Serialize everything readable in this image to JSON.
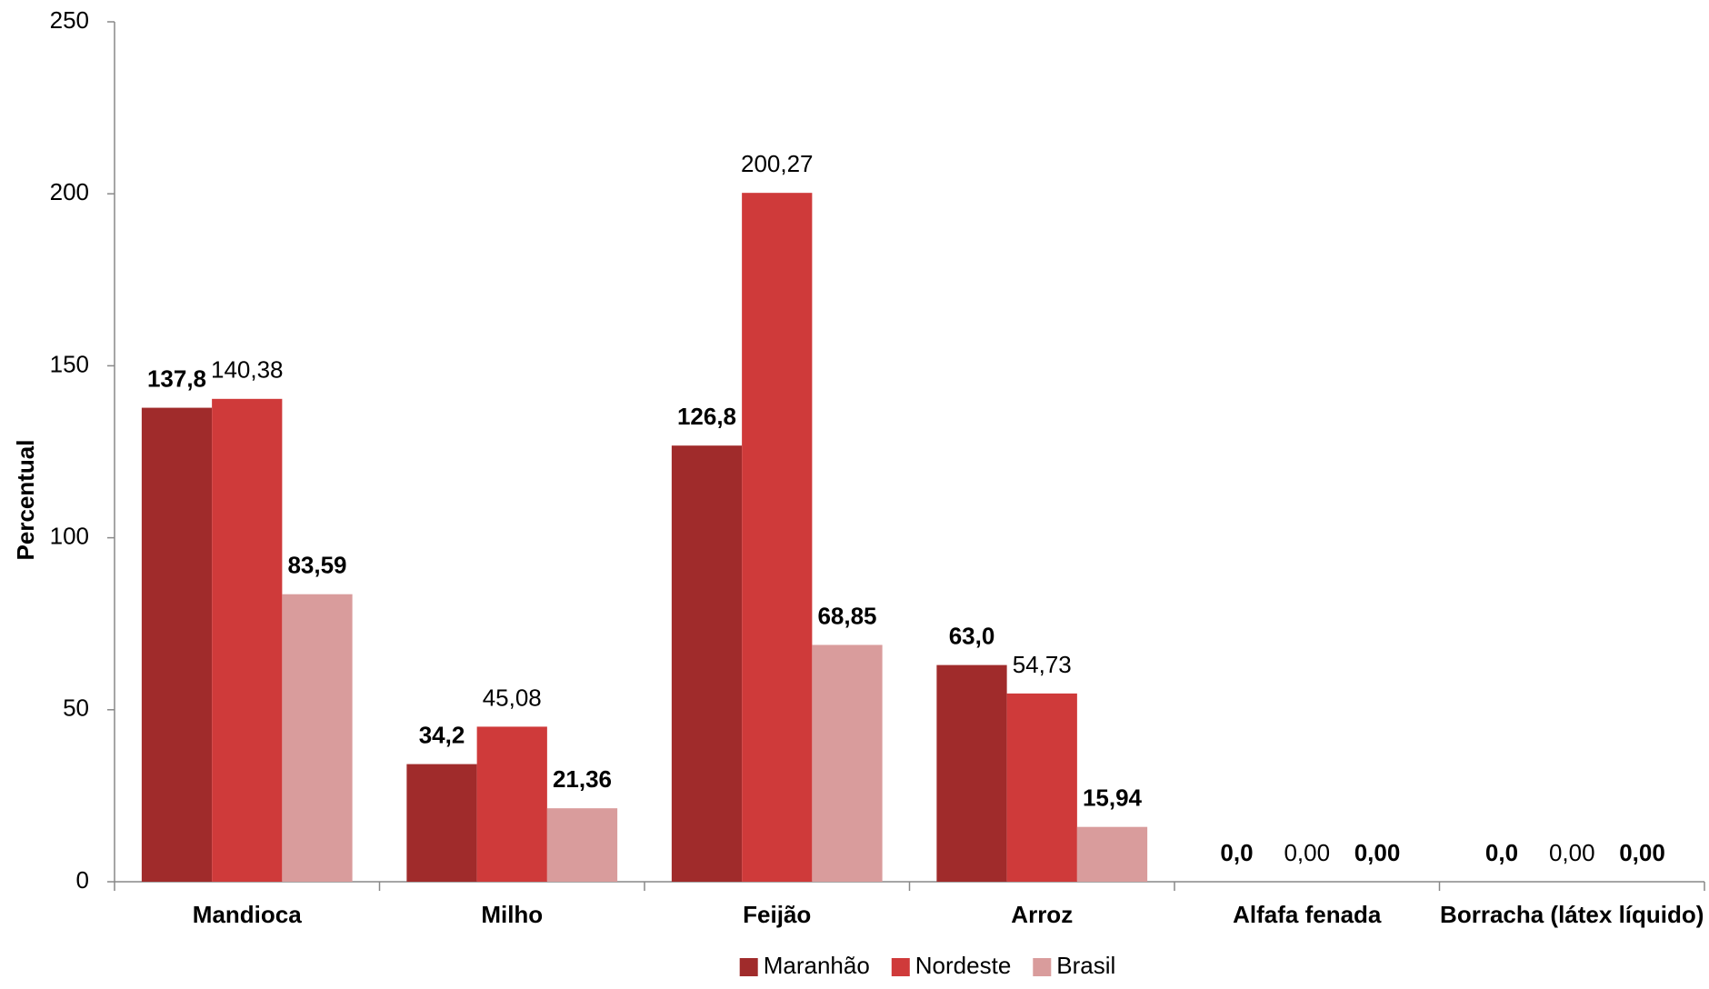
{
  "chart_data": {
    "type": "bar",
    "y_label": "Percentual",
    "categories": [
      "Mandioca",
      "Milho",
      "Feijão",
      "Arroz",
      "Alfafa fenada",
      "Borracha (látex líquido)"
    ],
    "series": [
      {
        "name": "Maranhão",
        "color": "#a02b2b",
        "label_bold": true,
        "values": [
          137.8,
          34.2,
          126.8,
          63.0,
          0,
          0
        ],
        "value_labels": [
          "137,8",
          "34,2",
          "126,8",
          "63,0",
          "0,0",
          "0,0"
        ]
      },
      {
        "name": "Nordeste",
        "color": "#cf3a3a",
        "label_bold": false,
        "values": [
          140.38,
          45.08,
          200.27,
          54.73,
          0,
          0
        ],
        "value_labels": [
          "140,38",
          "45,08",
          "200,27",
          "54,73",
          "0,00",
          "0,00"
        ]
      },
      {
        "name": "Brasil",
        "color": "#d99c9c",
        "label_bold": true,
        "values": [
          83.59,
          21.36,
          68.85,
          15.94,
          0,
          0
        ],
        "value_labels": [
          "83,59",
          "21,36",
          "68,85",
          "15,94",
          "0,00",
          "0,00"
        ]
      }
    ],
    "ylim": [
      0,
      250
    ],
    "yticks": [
      0,
      50,
      100,
      150,
      200,
      250
    ],
    "grid": false,
    "legend": "bottom"
  }
}
